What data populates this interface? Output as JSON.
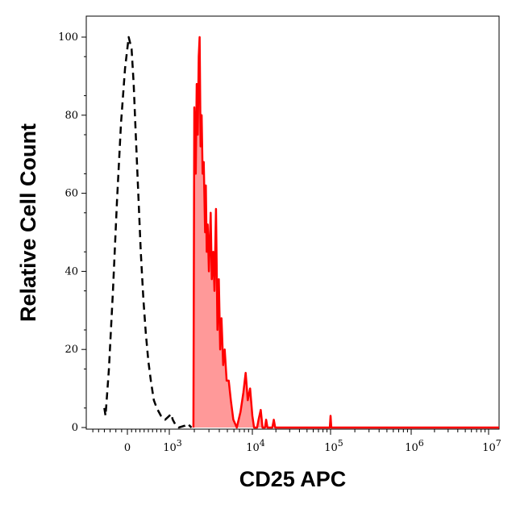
{
  "chart_data": {
    "type": "area",
    "title": "",
    "xlabel": "CD25 APC",
    "ylabel": "Relative Cell Count",
    "x_scale": "biexponential",
    "xlim": [
      -700,
      13000000
    ],
    "ylim": [
      0,
      100
    ],
    "y_ticks": [
      "0",
      "20",
      "40",
      "60",
      "80",
      "100"
    ],
    "x_ticks": [
      {
        "value": 0,
        "base": "0",
        "exp": ""
      },
      {
        "value": 1000,
        "base": "10",
        "exp": "3"
      },
      {
        "value": 10000,
        "base": "10",
        "exp": "4"
      },
      {
        "value": 100000,
        "base": "10",
        "exp": "5"
      },
      {
        "value": 1000000,
        "base": "10",
        "exp": "6"
      },
      {
        "value": 10000000,
        "base": "10",
        "exp": "7"
      }
    ],
    "grid": false,
    "series": [
      {
        "style": "dashed-outline",
        "color": "#000000",
        "points": [
          [
            -400,
            5
          ],
          [
            -380,
            3
          ],
          [
            -320,
            15
          ],
          [
            -250,
            35
          ],
          [
            -180,
            58
          ],
          [
            -110,
            78
          ],
          [
            -40,
            92
          ],
          [
            30,
            100
          ],
          [
            100,
            97
          ],
          [
            150,
            88
          ],
          [
            200,
            75
          ],
          [
            260,
            60
          ],
          [
            320,
            45
          ],
          [
            380,
            33
          ],
          [
            440,
            24
          ],
          [
            500,
            17
          ],
          [
            560,
            12
          ],
          [
            630,
            7
          ],
          [
            700,
            5
          ],
          [
            800,
            3
          ],
          [
            900,
            2
          ],
          [
            1000,
            3
          ],
          [
            1050,
            3.5
          ],
          [
            1100,
            2
          ],
          [
            1200,
            0.5
          ],
          [
            1300,
            0
          ],
          [
            1550,
            0.5
          ],
          [
            1650,
            1
          ],
          [
            1750,
            0.5
          ],
          [
            1850,
            0
          ]
        ]
      },
      {
        "style": "filled",
        "color": "#ff0000",
        "fill": "#ff9999",
        "points": [
          [
            1950,
            0
          ],
          [
            2000,
            82
          ],
          [
            2080,
            65
          ],
          [
            2140,
            88
          ],
          [
            2200,
            75
          ],
          [
            2260,
            95
          ],
          [
            2320,
            100
          ],
          [
            2380,
            72
          ],
          [
            2450,
            80
          ],
          [
            2520,
            65
          ],
          [
            2600,
            68
          ],
          [
            2700,
            50
          ],
          [
            2750,
            62
          ],
          [
            2820,
            45
          ],
          [
            2900,
            52
          ],
          [
            3000,
            40
          ],
          [
            3150,
            55
          ],
          [
            3250,
            38
          ],
          [
            3380,
            45
          ],
          [
            3500,
            35
          ],
          [
            3650,
            56
          ],
          [
            3800,
            25
          ],
          [
            3950,
            38
          ],
          [
            4100,
            20
          ],
          [
            4250,
            28
          ],
          [
            4450,
            16
          ],
          [
            4650,
            20
          ],
          [
            4900,
            12
          ],
          [
            5200,
            12
          ],
          [
            5500,
            7
          ],
          [
            5900,
            2
          ],
          [
            6500,
            0
          ],
          [
            7200,
            4
          ],
          [
            7800,
            9
          ],
          [
            8300,
            14
          ],
          [
            8800,
            7
          ],
          [
            9400,
            10
          ],
          [
            10000,
            3
          ],
          [
            10500,
            0
          ],
          [
            11500,
            0
          ],
          [
            12000,
            2
          ],
          [
            12800,
            4.5
          ],
          [
            13500,
            0
          ],
          [
            14500,
            0
          ],
          [
            15000,
            2
          ],
          [
            15600,
            0
          ],
          [
            18000,
            0
          ],
          [
            18800,
            2
          ],
          [
            19600,
            0
          ],
          [
            98000,
            0
          ],
          [
            100000,
            3
          ],
          [
            102000,
            0
          ],
          [
            13000000,
            0
          ]
        ]
      }
    ]
  }
}
